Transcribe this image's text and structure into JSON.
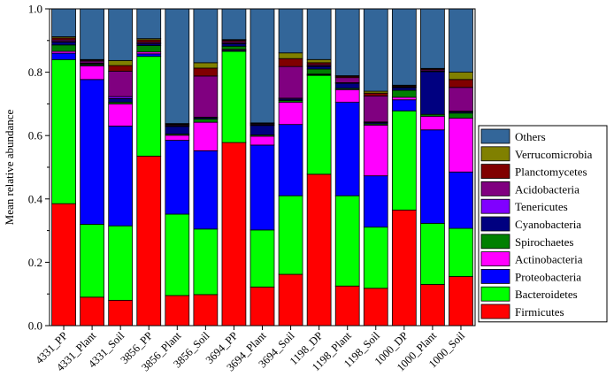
{
  "chart_data": {
    "type": "bar",
    "stacked": true,
    "title": "",
    "xlabel": "",
    "ylabel": "Mean relative abundance",
    "ylim": [
      0,
      1.0
    ],
    "yticks": [
      "0.0",
      "0.2",
      "0.4",
      "0.6",
      "0.8",
      "1.0"
    ],
    "legend_position": "right",
    "categories": [
      "4331_PP",
      "4331_Plant",
      "4331_Soil",
      "3856_PP",
      "3856_Plant",
      "3856_Soil",
      "3694_PP",
      "3694_Plant",
      "3694_Soil",
      "1198_DP",
      "1198_Plant",
      "1198_Soil",
      "1000_DP",
      "1000_Plant",
      "1000_Soil"
    ],
    "series": [
      {
        "name": "Firmicutes",
        "color": "#ff0000",
        "values": [
          0.385,
          0.09,
          0.08,
          0.535,
          0.095,
          0.098,
          0.578,
          0.122,
          0.162,
          0.478,
          0.125,
          0.118,
          0.365,
          0.13,
          0.155
        ]
      },
      {
        "name": "Bacteroidetes",
        "color": "#00ff00",
        "values": [
          0.455,
          0.23,
          0.235,
          0.315,
          0.257,
          0.207,
          0.288,
          0.18,
          0.248,
          0.312,
          0.285,
          0.193,
          0.313,
          0.193,
          0.152
        ]
      },
      {
        "name": "Proteobacteria",
        "color": "#0000ff",
        "values": [
          0.02,
          0.457,
          0.315,
          0.008,
          0.233,
          0.247,
          0.003,
          0.268,
          0.225,
          0.002,
          0.295,
          0.162,
          0.035,
          0.295,
          0.178
        ]
      },
      {
        "name": "Actinobacteria",
        "color": "#ff00ff",
        "values": [
          0.006,
          0.043,
          0.07,
          0.006,
          0.016,
          0.09,
          0.003,
          0.028,
          0.07,
          0.002,
          0.04,
          0.16,
          0.008,
          0.043,
          0.17
        ]
      },
      {
        "name": "Spirochaetes",
        "color": "#008000",
        "values": [
          0.02,
          0.004,
          0.005,
          0.02,
          0.004,
          0.01,
          0.01,
          0.004,
          0.006,
          0.016,
          0.004,
          0.004,
          0.022,
          0.006,
          0.016
        ]
      },
      {
        "name": "Cyanobacteria",
        "color": "#000080",
        "values": [
          0.009,
          0.003,
          0.012,
          0.006,
          0.024,
          0.004,
          0.008,
          0.03,
          0.004,
          0.008,
          0.016,
          0.004,
          0.008,
          0.135,
          0.004
        ]
      },
      {
        "name": "Tenericutes",
        "color": "#8000ff",
        "values": [
          0.002,
          0.002,
          0.006,
          0.001,
          0.002,
          0.002,
          0.002,
          0.002,
          0.003,
          0.002,
          0.002,
          0.002,
          0.002,
          0.002,
          0.002
        ]
      },
      {
        "name": "Acidobacteria",
        "color": "#800080",
        "values": [
          0.005,
          0.006,
          0.08,
          0.004,
          0.003,
          0.13,
          0.005,
          0.003,
          0.1,
          0.004,
          0.016,
          0.082,
          0.001,
          0.004,
          0.075
        ]
      },
      {
        "name": "Planctomycetes",
        "color": "#800000",
        "values": [
          0.006,
          0.003,
          0.018,
          0.007,
          0.002,
          0.025,
          0.004,
          0.002,
          0.025,
          0.006,
          0.004,
          0.009,
          0.003,
          0.003,
          0.025
        ]
      },
      {
        "name": "Verrucomicrobia",
        "color": "#808000",
        "values": [
          0.004,
          0.002,
          0.016,
          0.004,
          0.002,
          0.017,
          0.002,
          0.001,
          0.018,
          0.01,
          0.002,
          0.006,
          0.002,
          0.001,
          0.023
        ]
      },
      {
        "name": "Others",
        "color": "#336699",
        "values": [
          0.088,
          0.16,
          0.163,
          0.094,
          0.362,
          0.17,
          0.097,
          0.36,
          0.139,
          0.16,
          0.211,
          0.26,
          0.241,
          0.188,
          0.2
        ]
      }
    ]
  }
}
